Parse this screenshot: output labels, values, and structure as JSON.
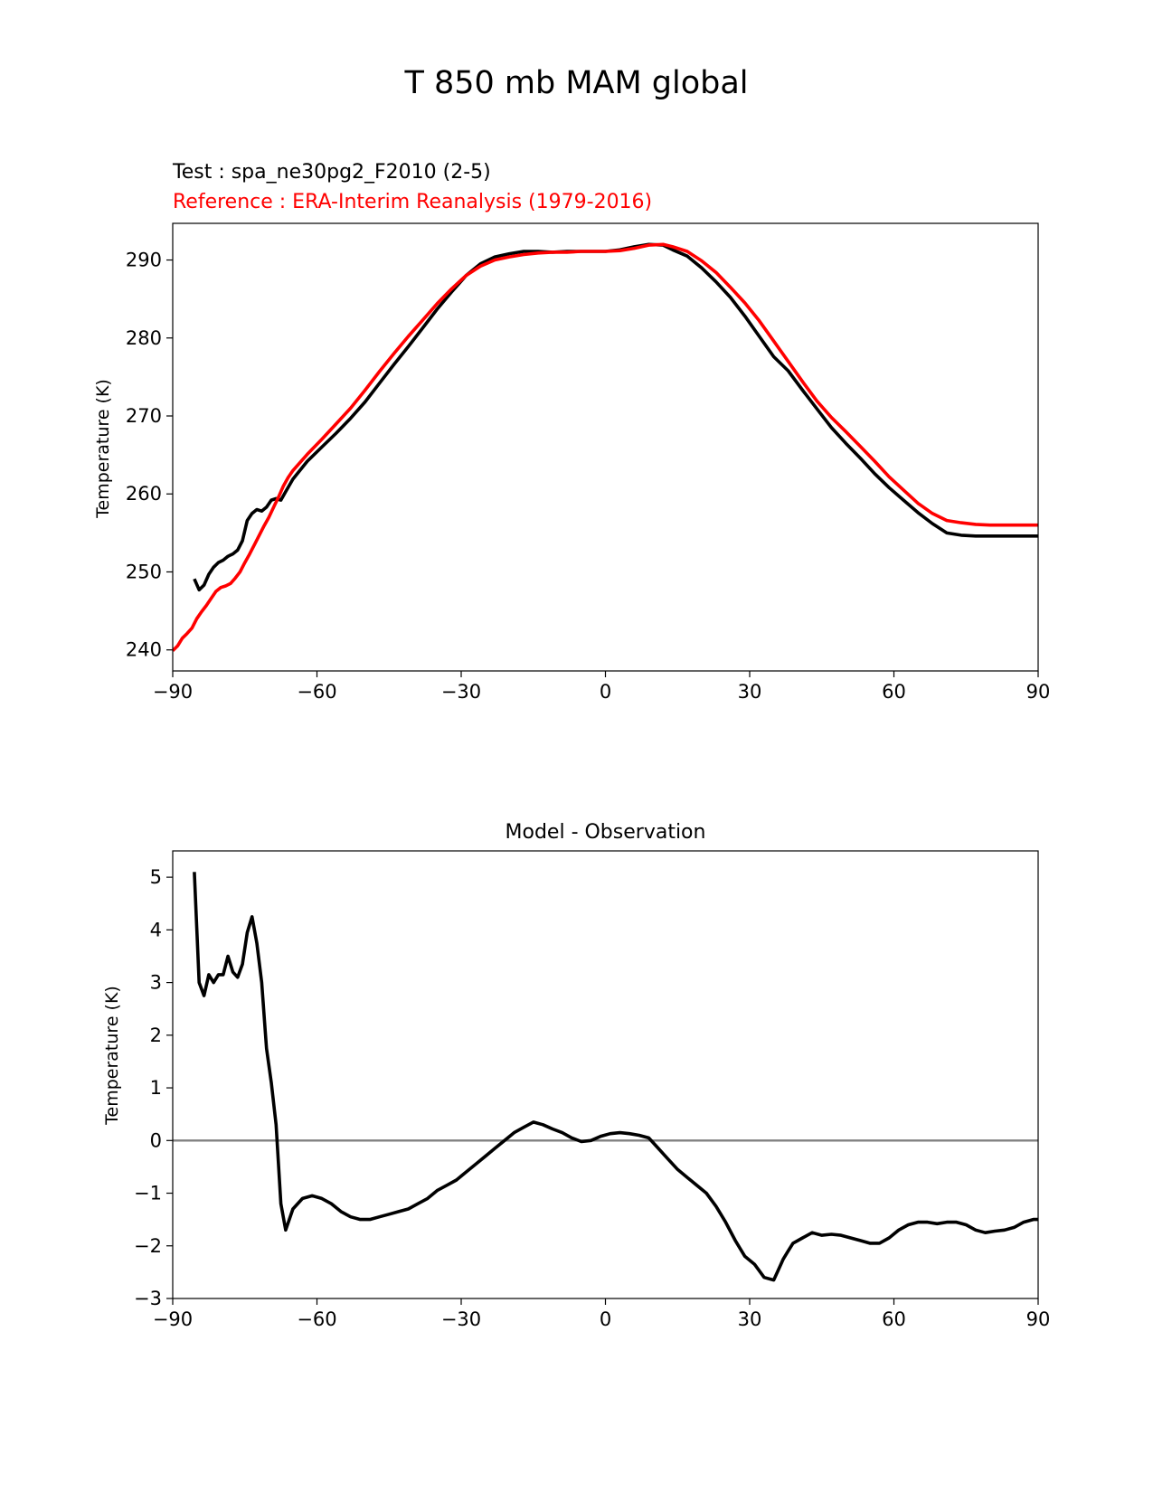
{
  "figure": {
    "title": "T 850 mb MAM global"
  },
  "colors": {
    "test": "#000000",
    "reference": "#ff0000",
    "zero_line": "#808080"
  },
  "chart_data": [
    {
      "type": "line",
      "test_label": "Test : spa_ne30pg2_F2010 (2-5)",
      "reference_label": "Reference : ERA-Interim Reanalysis (1979-2016)",
      "xlabel": "",
      "ylabel": "Temperature (K)",
      "xlim": [
        -90,
        90
      ],
      "ylim": [
        237.3,
        294.7
      ],
      "xticks": [
        -90,
        -60,
        -30,
        0,
        30,
        60,
        90
      ],
      "xtick_labels": [
        "−90",
        "−60",
        "−30",
        "0",
        "30",
        "60",
        "90"
      ],
      "yticks": [
        240,
        250,
        260,
        270,
        280,
        290
      ],
      "ytick_labels": [
        "240",
        "250",
        "260",
        "270",
        "280",
        "290"
      ],
      "series": [
        {
          "role": "test",
          "x": [
            -85.5,
            -84.5,
            -83.5,
            -82.5,
            -81.5,
            -80.5,
            -79.5,
            -78.5,
            -77.5,
            -76.5,
            -75.5,
            -74.5,
            -73.5,
            -72.5,
            -71.5,
            -70.5,
            -69.5,
            -68.5,
            -67.5,
            -66.5,
            -65,
            -62,
            -59,
            -56,
            -53,
            -50,
            -47,
            -44,
            -41,
            -38,
            -35,
            -32,
            -29,
            -26,
            -23,
            -20,
            -17,
            -14,
            -11,
            -8,
            -5,
            -2,
            0,
            3,
            6,
            9,
            12,
            14,
            17,
            20,
            23,
            26,
            29,
            32,
            35,
            38,
            41,
            44,
            47,
            50,
            53,
            56,
            59,
            62,
            65,
            68,
            71,
            74,
            77,
            80,
            83,
            86,
            88,
            90
          ],
          "y": [
            249.1,
            247.7,
            248.3,
            249.7,
            250.6,
            251.2,
            251.5,
            252.0,
            252.3,
            252.8,
            254.0,
            256.6,
            257.5,
            258.0,
            257.8,
            258.3,
            259.2,
            259.4,
            259.2,
            260.3,
            261.9,
            264.2,
            266.0,
            267.8,
            269.7,
            271.8,
            274.2,
            276.6,
            278.9,
            281.3,
            283.7,
            285.9,
            288.0,
            289.5,
            290.4,
            290.8,
            291.1,
            291.1,
            291.0,
            291.1,
            291.1,
            291.1,
            291.1,
            291.3,
            291.7,
            292.0,
            291.9,
            291.3,
            290.5,
            289.0,
            287.2,
            285.2,
            282.8,
            280.2,
            277.6,
            275.8,
            273.3,
            270.9,
            268.5,
            266.5,
            264.6,
            262.6,
            260.8,
            259.2,
            257.6,
            256.2,
            255.0,
            254.7,
            254.6,
            254.6,
            254.6,
            254.6,
            254.6,
            254.6
          ]
        },
        {
          "role": "reference",
          "x": [
            -90,
            -89,
            -88,
            -87,
            -86,
            -85,
            -84,
            -83,
            -82,
            -81,
            -80,
            -79,
            -78,
            -77,
            -76,
            -75,
            -74,
            -73,
            -72,
            -71,
            -70,
            -69,
            -68,
            -67,
            -66,
            -65,
            -62,
            -59,
            -56,
            -53,
            -50,
            -47,
            -44,
            -41,
            -38,
            -35,
            -32,
            -29,
            -26,
            -23,
            -20,
            -17,
            -14,
            -11,
            -8,
            -5,
            -2,
            0,
            3,
            6,
            9,
            12,
            14,
            17,
            20,
            23,
            26,
            29,
            32,
            35,
            38,
            41,
            44,
            47,
            50,
            53,
            56,
            59,
            62,
            65,
            68,
            71,
            74,
            77,
            80,
            83,
            86,
            88,
            90
          ],
          "y": [
            239.9,
            240.5,
            241.5,
            242.1,
            242.8,
            244.0,
            244.9,
            245.7,
            246.6,
            247.5,
            248.0,
            248.2,
            248.5,
            249.2,
            250.0,
            251.2,
            252.3,
            253.5,
            254.7,
            255.9,
            257.0,
            258.3,
            259.6,
            261.0,
            262.1,
            263.0,
            265.1,
            267.0,
            269.0,
            271.0,
            273.3,
            275.7,
            278.0,
            280.2,
            282.3,
            284.4,
            286.3,
            288.0,
            289.2,
            290.0,
            290.4,
            290.7,
            290.9,
            291.0,
            291.0,
            291.1,
            291.1,
            291.1,
            291.2,
            291.5,
            291.9,
            292.0,
            291.7,
            291.1,
            289.9,
            288.4,
            286.5,
            284.5,
            282.2,
            279.6,
            277.0,
            274.4,
            271.9,
            269.8,
            268.0,
            266.1,
            264.2,
            262.2,
            260.5,
            258.8,
            257.5,
            256.6,
            256.3,
            256.1,
            256.0,
            256.0,
            256.0,
            256.0,
            256.0
          ]
        }
      ]
    },
    {
      "type": "line",
      "title": "Model - Observation",
      "xlabel": "",
      "ylabel": "Temperature (K)",
      "xlim": [
        -90,
        90
      ],
      "ylim": [
        -3,
        5.5
      ],
      "xticks": [
        -90,
        -60,
        -30,
        0,
        30,
        60,
        90
      ],
      "xtick_labels": [
        "−90",
        "−60",
        "−30",
        "0",
        "30",
        "60",
        "90"
      ],
      "yticks": [
        -3,
        -2,
        -1,
        0,
        1,
        2,
        3,
        4,
        5
      ],
      "ytick_labels": [
        "−3",
        "−2",
        "−1",
        "0",
        "1",
        "2",
        "3",
        "4",
        "5"
      ],
      "zero_line": 0,
      "series": [
        {
          "role": "difference",
          "x": [
            -85.5,
            -84.5,
            -83.5,
            -82.5,
            -81.5,
            -80.5,
            -79.5,
            -78.5,
            -77.5,
            -76.5,
            -75.5,
            -74.5,
            -73.5,
            -72.5,
            -71.5,
            -70.5,
            -69.5,
            -68.5,
            -67.5,
            -66.5,
            -65,
            -63,
            -61,
            -59,
            -57,
            -55,
            -53,
            -51,
            -49,
            -47,
            -45,
            -43,
            -41,
            -39,
            -37,
            -35,
            -33,
            -31,
            -29,
            -27,
            -25,
            -23,
            -21,
            -19,
            -17,
            -15,
            -13,
            -11,
            -9,
            -7,
            -5,
            -3,
            -1,
            1,
            3,
            5,
            7,
            9,
            11,
            13,
            15,
            17,
            19,
            21,
            23,
            25,
            27,
            29,
            31,
            33,
            35,
            36,
            37,
            38,
            39,
            41,
            43,
            45,
            47,
            49,
            51,
            53,
            55,
            57,
            59,
            61,
            63,
            65,
            67,
            69,
            71,
            73,
            75,
            77,
            79,
            81,
            83,
            85,
            87,
            89,
            90
          ],
          "y": [
            5.1,
            3.0,
            2.75,
            3.15,
            3.0,
            3.15,
            3.15,
            3.5,
            3.2,
            3.1,
            3.35,
            3.95,
            4.25,
            3.75,
            3.0,
            1.75,
            1.1,
            0.3,
            -1.2,
            -1.7,
            -1.3,
            -1.1,
            -1.05,
            -1.1,
            -1.2,
            -1.35,
            -1.45,
            -1.5,
            -1.5,
            -1.45,
            -1.4,
            -1.35,
            -1.3,
            -1.2,
            -1.1,
            -0.95,
            -0.85,
            -0.75,
            -0.6,
            -0.45,
            -0.3,
            -0.15,
            0.0,
            0.15,
            0.25,
            0.35,
            0.3,
            0.22,
            0.15,
            0.05,
            -0.02,
            0.0,
            0.08,
            0.13,
            0.15,
            0.13,
            0.1,
            0.05,
            -0.15,
            -0.35,
            -0.55,
            -0.7,
            -0.85,
            -1.0,
            -1.25,
            -1.55,
            -1.9,
            -2.2,
            -2.35,
            -2.6,
            -2.65,
            -2.45,
            -2.25,
            -2.1,
            -1.95,
            -1.85,
            -1.75,
            -1.8,
            -1.78,
            -1.8,
            -1.85,
            -1.9,
            -1.95,
            -1.95,
            -1.85,
            -1.7,
            -1.6,
            -1.55,
            -1.55,
            -1.58,
            -1.55,
            -1.55,
            -1.6,
            -1.7,
            -1.75,
            -1.72,
            -1.7,
            -1.65,
            -1.55,
            -1.5,
            -1.5
          ]
        }
      ]
    }
  ]
}
